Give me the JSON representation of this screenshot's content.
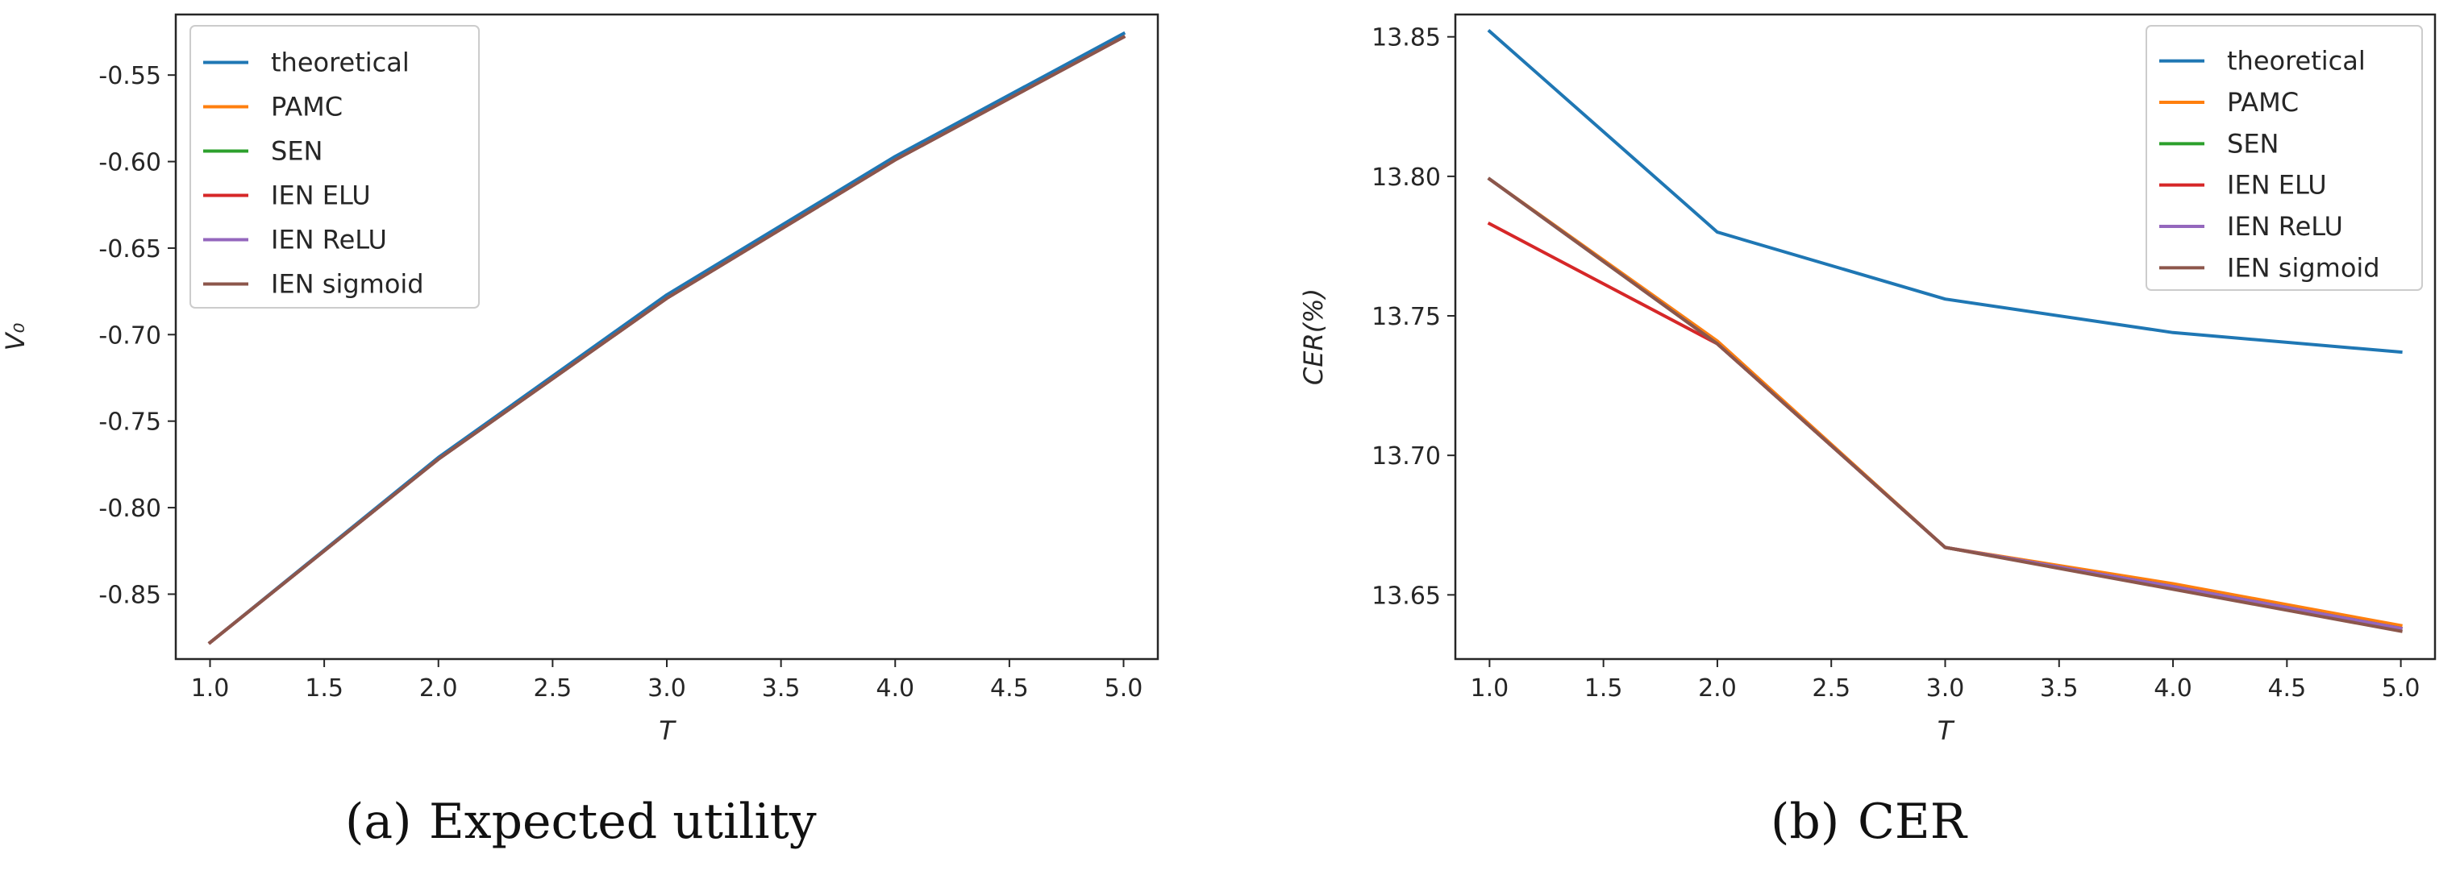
{
  "chart_data": [
    {
      "type": "line",
      "caption_tag": "(a)",
      "caption_text": "Expected utility",
      "xlabel": "T",
      "ylabel": "V₀",
      "xlim": [
        0.85,
        5.15
      ],
      "ylim": [
        -0.8875,
        -0.515
      ],
      "xticks": [
        1.0,
        1.5,
        2.0,
        2.5,
        3.0,
        3.5,
        4.0,
        4.5,
        5.0
      ],
      "xtick_labels": [
        "1.0",
        "1.5",
        "2.0",
        "2.5",
        "3.0",
        "3.5",
        "4.0",
        "4.5",
        "5.0"
      ],
      "yticks": [
        -0.85,
        -0.8,
        -0.75,
        -0.7,
        -0.65,
        -0.6,
        -0.55
      ],
      "ytick_labels": [
        "-0.85",
        "-0.80",
        "-0.75",
        "-0.70",
        "-0.65",
        "-0.60",
        "-0.55"
      ],
      "legend_position": "top-left",
      "x": [
        1,
        2,
        3,
        4,
        5
      ],
      "series": [
        {
          "name": "theoretical",
          "color": "#1f77b4",
          "values": [
            -0.878,
            -0.771,
            -0.677,
            -0.597,
            -0.526
          ]
        },
        {
          "name": "PAMC",
          "color": "#ff7f0e",
          "values": [
            -0.878,
            -0.772,
            -0.679,
            -0.599,
            -0.528
          ]
        },
        {
          "name": "SEN",
          "color": "#2ca02c",
          "values": [
            -0.878,
            -0.772,
            -0.679,
            -0.599,
            -0.528
          ]
        },
        {
          "name": "IEN ELU",
          "color": "#d62728",
          "values": [
            -0.878,
            -0.772,
            -0.679,
            -0.599,
            -0.528
          ]
        },
        {
          "name": "IEN ReLU",
          "color": "#9467bd",
          "values": [
            -0.878,
            -0.772,
            -0.679,
            -0.599,
            -0.528
          ]
        },
        {
          "name": "IEN sigmoid",
          "color": "#8c564b",
          "values": [
            -0.878,
            -0.772,
            -0.679,
            -0.599,
            -0.528
          ]
        }
      ]
    },
    {
      "type": "line",
      "caption_tag": "(b)",
      "caption_text": "CER",
      "xlabel": "T",
      "ylabel": "CER(%)",
      "xlim": [
        0.85,
        5.15
      ],
      "ylim": [
        13.627,
        13.858
      ],
      "xticks": [
        1.0,
        1.5,
        2.0,
        2.5,
        3.0,
        3.5,
        4.0,
        4.5,
        5.0
      ],
      "xtick_labels": [
        "1.0",
        "1.5",
        "2.0",
        "2.5",
        "3.0",
        "3.5",
        "4.0",
        "4.5",
        "5.0"
      ],
      "yticks": [
        13.65,
        13.7,
        13.75,
        13.8,
        13.85
      ],
      "ytick_labels": [
        "13.65",
        "13.70",
        "13.75",
        "13.80",
        "13.85"
      ],
      "legend_position": "top-right",
      "x": [
        1,
        2,
        3,
        4,
        5
      ],
      "series": [
        {
          "name": "theoretical",
          "color": "#1f77b4",
          "values": [
            13.852,
            13.78,
            13.756,
            13.744,
            13.737
          ]
        },
        {
          "name": "PAMC",
          "color": "#ff7f0e",
          "values": [
            13.799,
            13.741,
            13.667,
            13.654,
            13.639
          ]
        },
        {
          "name": "SEN",
          "color": "#2ca02c",
          "values": [
            13.799,
            13.74,
            13.667,
            13.653,
            13.638
          ]
        },
        {
          "name": "IEN ELU",
          "color": "#d62728",
          "values": [
            13.783,
            13.74,
            13.667,
            13.653,
            13.638
          ]
        },
        {
          "name": "IEN ReLU",
          "color": "#9467bd",
          "values": [
            13.799,
            13.74,
            13.667,
            13.653,
            13.638
          ]
        },
        {
          "name": "IEN sigmoid",
          "color": "#8c564b",
          "values": [
            13.799,
            13.74,
            13.667,
            13.652,
            13.637
          ]
        }
      ]
    }
  ]
}
